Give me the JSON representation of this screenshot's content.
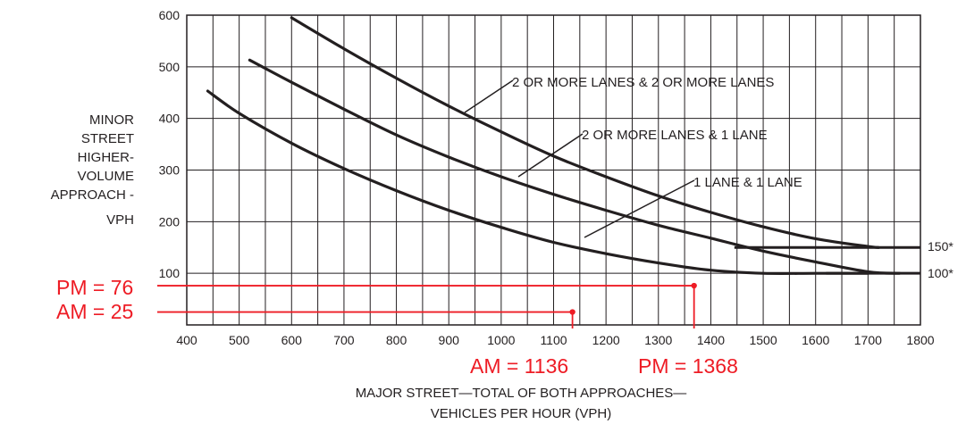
{
  "chart_data": {
    "type": "line",
    "xlabel_lines": [
      "MAJOR STREET—TOTAL OF BOTH APPROACHES—",
      "VEHICLES PER HOUR (VPH)"
    ],
    "ylabel_lines": [
      "MINOR",
      "STREET",
      "HIGHER-",
      "VOLUME",
      "APPROACH -",
      "VPH"
    ],
    "xlim": [
      400,
      1800
    ],
    "ylim": [
      0,
      600
    ],
    "x_ticks": [
      400,
      500,
      600,
      700,
      800,
      900,
      1000,
      1100,
      1200,
      1300,
      1400,
      1500,
      1600,
      1700,
      1800
    ],
    "y_ticks": [
      100,
      200,
      300,
      400,
      500,
      600
    ],
    "grid": true,
    "series": [
      {
        "name": "2 OR MORE LANES & 2 OR MORE LANES",
        "x": [
          600,
          700,
          800,
          900,
          1000,
          1100,
          1200,
          1300,
          1400,
          1500,
          1600,
          1700,
          1720
        ],
        "y": [
          595,
          535,
          478,
          424,
          374,
          327,
          287,
          250,
          218,
          190,
          167,
          152,
          150
        ]
      },
      {
        "name": "2 OR MORE LANES & 1 LANE",
        "x": [
          520,
          600,
          700,
          800,
          900,
          1000,
          1100,
          1200,
          1300,
          1400,
          1500,
          1600,
          1700,
          1760
        ],
        "y": [
          513,
          470,
          418,
          368,
          325,
          287,
          253,
          222,
          193,
          168,
          143,
          122,
          103,
          100
        ]
      },
      {
        "name": "1 LANE & 1 LANE",
        "x": [
          440,
          500,
          600,
          700,
          800,
          900,
          1000,
          1100,
          1200,
          1300,
          1400,
          1500,
          1600,
          1700
        ],
        "y": [
          453,
          410,
          352,
          303,
          260,
          222,
          189,
          160,
          138,
          120,
          106,
          100,
          100,
          100
        ]
      }
    ],
    "floor_lines": [
      {
        "label": "150*",
        "x_start": 1445,
        "x_end": 1800,
        "y": 150
      },
      {
        "label": "100*",
        "x_start": 1620,
        "x_end": 1800,
        "y": 100
      }
    ],
    "annotations": {
      "pm_y_label": "PM = 76",
      "am_y_label": "AM = 25",
      "am_x_label": "AM = 1136",
      "pm_x_label": "PM = 1368",
      "pm_point": {
        "x": 1368,
        "y": 76
      },
      "am_point": {
        "x": 1136,
        "y": 25
      },
      "color": "#ee1c25"
    }
  }
}
